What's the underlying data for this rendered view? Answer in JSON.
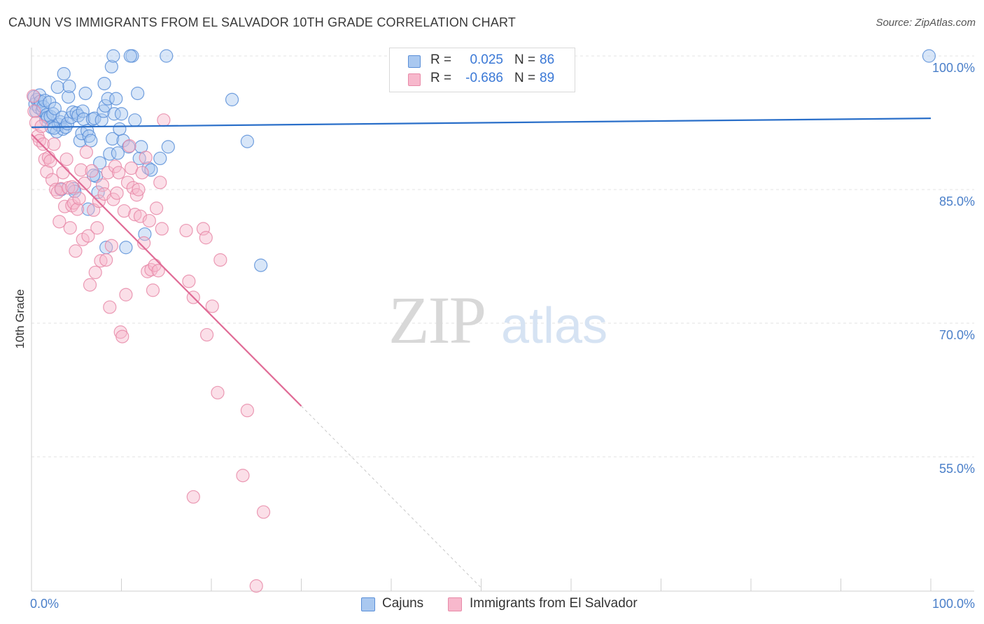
{
  "title": "CAJUN VS IMMIGRANTS FROM EL SALVADOR 10TH GRADE CORRELATION CHART",
  "source": "Source: ZipAtlas.com",
  "colors": {
    "cajun_fill": "#a9c8f0",
    "cajun_stroke": "#5b8fd8",
    "cajun_line": "#2a6fc9",
    "salv_fill": "#f7b8cc",
    "salv_stroke": "#e88aa8",
    "salv_line": "#e06b96",
    "tick_text": "#4a7fc9",
    "grid": "#e3e3e3"
  },
  "legend": {
    "rows": [
      {
        "r_label": "R =",
        "r_value": "0.025",
        "n_label": "N =",
        "n_value": "86",
        "series": "cajun"
      },
      {
        "r_label": "R =",
        "r_value": "-0.686",
        "n_label": "N =",
        "n_value": "89",
        "series": "salv"
      }
    ]
  },
  "bottom_legend": {
    "items": [
      {
        "label": "Cajuns",
        "series": "cajun"
      },
      {
        "label": "Immigrants from El Salvador",
        "series": "salv"
      }
    ]
  },
  "watermark": {
    "zip": "ZIP",
    "atlas": "atlas"
  },
  "chart_data": {
    "type": "scatter",
    "title": "CAJUN VS IMMIGRANTS FROM EL SALVADOR 10TH GRADE CORRELATION CHART",
    "xlabel": "",
    "ylabel": "10th Grade",
    "xlim": [
      0,
      100
    ],
    "ylim": [
      40,
      102
    ],
    "x_tick_labels": [
      {
        "value": 0,
        "label": "0.0%"
      },
      {
        "value": 100,
        "label": "100.0%"
      }
    ],
    "y_tick_labels": [
      {
        "value": 100,
        "label": "100.0%"
      },
      {
        "value": 85,
        "label": "85.0%"
      },
      {
        "value": 70,
        "label": "70.0%"
      },
      {
        "value": 55,
        "label": "55.0%"
      }
    ],
    "x_minor_ticks": [
      0,
      10,
      20,
      30,
      40,
      50,
      60,
      70,
      80,
      90,
      100
    ],
    "grid": true,
    "series": [
      {
        "name": "Cajuns",
        "key": "cajun",
        "trend": {
          "x": [
            0,
            100
          ],
          "y": [
            92.0,
            93.0
          ],
          "dashed_after": null
        },
        "points": [
          [
            0.3,
            95.4
          ],
          [
            0.4,
            94.6
          ],
          [
            0.5,
            93.8
          ],
          [
            0.6,
            95.1
          ],
          [
            0.8,
            94.2
          ],
          [
            0.9,
            95.6
          ],
          [
            1.0,
            94.9
          ],
          [
            1.2,
            93.9
          ],
          [
            1.3,
            94.3
          ],
          [
            1.5,
            95.0
          ],
          [
            1.6,
            92.8
          ],
          [
            1.7,
            93.4
          ],
          [
            1.8,
            93.1
          ],
          [
            2.0,
            94.8
          ],
          [
            2.1,
            93.2
          ],
          [
            2.2,
            92.0
          ],
          [
            2.4,
            93.5
          ],
          [
            2.6,
            94.1
          ],
          [
            2.8,
            91.5
          ],
          [
            2.9,
            96.5
          ],
          [
            3.0,
            92.3
          ],
          [
            3.2,
            92.6
          ],
          [
            3.4,
            93.1
          ],
          [
            3.5,
            91.8
          ],
          [
            3.6,
            98.0
          ],
          [
            3.8,
            92.0
          ],
          [
            4.0,
            92.4
          ],
          [
            4.1,
            95.4
          ],
          [
            4.2,
            96.6
          ],
          [
            4.4,
            93.1
          ],
          [
            4.6,
            93.7
          ],
          [
            4.7,
            85.1
          ],
          [
            4.8,
            84.8
          ],
          [
            5.0,
            93.6
          ],
          [
            5.2,
            93.3
          ],
          [
            5.4,
            90.5
          ],
          [
            5.6,
            91.3
          ],
          [
            5.7,
            93.8
          ],
          [
            5.8,
            92.9
          ],
          [
            6.0,
            95.8
          ],
          [
            6.2,
            91.6
          ],
          [
            6.3,
            82.8
          ],
          [
            6.4,
            91.0
          ],
          [
            6.6,
            90.5
          ],
          [
            6.8,
            92.9
          ],
          [
            7.0,
            93.0
          ],
          [
            7.2,
            86.5
          ],
          [
            7.4,
            84.7
          ],
          [
            7.6,
            88.0
          ],
          [
            7.8,
            92.8
          ],
          [
            8.0,
            93.8
          ],
          [
            8.1,
            96.9
          ],
          [
            8.2,
            94.4
          ],
          [
            8.3,
            78.5
          ],
          [
            8.5,
            95.2
          ],
          [
            8.7,
            89.0
          ],
          [
            8.9,
            98.8
          ],
          [
            9.0,
            90.7
          ],
          [
            9.2,
            93.5
          ],
          [
            9.4,
            95.2
          ],
          [
            9.6,
            89.1
          ],
          [
            9.8,
            91.8
          ],
          [
            10.0,
            93.5
          ],
          [
            10.2,
            90.5
          ],
          [
            10.5,
            78.5
          ],
          [
            10.8,
            89.8
          ],
          [
            11.2,
            100.0
          ],
          [
            11.5,
            92.8
          ],
          [
            11.8,
            95.8
          ],
          [
            12.0,
            88.5
          ],
          [
            12.2,
            89.8
          ],
          [
            12.6,
            80.0
          ],
          [
            13.0,
            87.4
          ],
          [
            13.3,
            87.2
          ],
          [
            14.3,
            88.5
          ],
          [
            15.2,
            89.8
          ],
          [
            9.1,
            100.0
          ],
          [
            15.0,
            100.0
          ],
          [
            22.3,
            95.1
          ],
          [
            24.0,
            90.4
          ],
          [
            25.5,
            76.5
          ],
          [
            11.0,
            100.0
          ],
          [
            6.9,
            86.6
          ],
          [
            2.5,
            91.9
          ],
          [
            3.3,
            85.0
          ],
          [
            99.8,
            100.0
          ]
        ]
      },
      {
        "name": "Immigrants from El Salvador",
        "key": "salv",
        "trend": {
          "x": [
            0,
            30
          ],
          "y": [
            91.2,
            60.7
          ],
          "dashed_to": [
            50,
            40.3
          ]
        },
        "points": [
          [
            0.2,
            95.5
          ],
          [
            0.3,
            93.8
          ],
          [
            0.5,
            92.5
          ],
          [
            0.7,
            91.0
          ],
          [
            0.9,
            90.5
          ],
          [
            1.1,
            92.1
          ],
          [
            1.3,
            90.1
          ],
          [
            1.5,
            88.4
          ],
          [
            1.7,
            87.0
          ],
          [
            1.9,
            88.6
          ],
          [
            2.1,
            88.2
          ],
          [
            2.3,
            86.1
          ],
          [
            2.5,
            90.1
          ],
          [
            2.7,
            85.0
          ],
          [
            2.9,
            84.7
          ],
          [
            3.1,
            81.4
          ],
          [
            3.3,
            85.1
          ],
          [
            3.5,
            86.9
          ],
          [
            3.7,
            83.1
          ],
          [
            3.9,
            88.4
          ],
          [
            4.1,
            85.2
          ],
          [
            4.3,
            80.7
          ],
          [
            4.5,
            83.2
          ],
          [
            4.7,
            83.5
          ],
          [
            4.9,
            78.1
          ],
          [
            5.1,
            82.8
          ],
          [
            5.3,
            84.0
          ],
          [
            5.5,
            87.2
          ],
          [
            5.7,
            79.4
          ],
          [
            5.9,
            85.7
          ],
          [
            6.1,
            89.2
          ],
          [
            6.3,
            79.8
          ],
          [
            6.5,
            74.3
          ],
          [
            6.7,
            87.1
          ],
          [
            6.9,
            82.7
          ],
          [
            7.1,
            75.7
          ],
          [
            7.3,
            80.7
          ],
          [
            7.5,
            83.7
          ],
          [
            7.7,
            77.0
          ],
          [
            7.9,
            85.5
          ],
          [
            8.1,
            84.5
          ],
          [
            8.3,
            77.1
          ],
          [
            8.5,
            86.9
          ],
          [
            8.7,
            71.8
          ],
          [
            8.9,
            78.7
          ],
          [
            9.1,
            83.9
          ],
          [
            9.3,
            87.6
          ],
          [
            9.5,
            84.6
          ],
          [
            9.7,
            86.9
          ],
          [
            9.9,
            69.0
          ],
          [
            10.1,
            68.5
          ],
          [
            10.3,
            82.6
          ],
          [
            10.5,
            73.2
          ],
          [
            10.7,
            85.8
          ],
          [
            10.9,
            89.9
          ],
          [
            11.1,
            87.4
          ],
          [
            11.3,
            85.2
          ],
          [
            11.5,
            82.2
          ],
          [
            11.7,
            84.4
          ],
          [
            11.9,
            85.0
          ],
          [
            12.1,
            82.0
          ],
          [
            12.3,
            86.9
          ],
          [
            12.5,
            79.0
          ],
          [
            12.7,
            88.6
          ],
          [
            12.9,
            75.8
          ],
          [
            13.1,
            81.5
          ],
          [
            13.3,
            76.0
          ],
          [
            13.5,
            73.7
          ],
          [
            13.7,
            76.5
          ],
          [
            13.9,
            82.9
          ],
          [
            14.1,
            75.9
          ],
          [
            14.3,
            85.8
          ],
          [
            14.5,
            80.6
          ],
          [
            14.7,
            92.8
          ],
          [
            17.2,
            80.4
          ],
          [
            17.5,
            74.7
          ],
          [
            18.0,
            72.9
          ],
          [
            19.1,
            80.6
          ],
          [
            19.4,
            79.6
          ],
          [
            20.1,
            71.9
          ],
          [
            19.5,
            68.7
          ],
          [
            21.0,
            77.1
          ],
          [
            20.7,
            62.2
          ],
          [
            24.0,
            60.2
          ],
          [
            23.5,
            52.9
          ],
          [
            18.0,
            50.5
          ],
          [
            25.8,
            48.8
          ],
          [
            25.0,
            40.5
          ],
          [
            4.5,
            85.3
          ]
        ]
      }
    ]
  }
}
